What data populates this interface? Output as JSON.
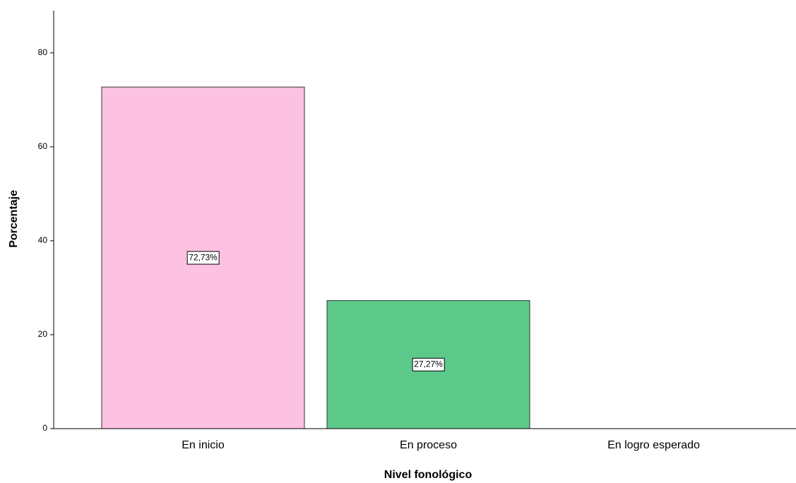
{
  "chart_data": {
    "type": "bar",
    "x_label": "Nivel fonológico",
    "y_label": "Porcentaje",
    "categories": [
      "En inicio",
      "En proceso",
      "En logro esperado"
    ],
    "values": [
      72.73,
      27.27,
      null
    ],
    "value_labels": [
      "72,73%",
      "27,27%",
      null
    ],
    "colors": [
      "#fdc1e1",
      "#5cc98a",
      null
    ],
    "ylim": [
      0,
      89
    ],
    "yticks": [
      0,
      20,
      40,
      60,
      80
    ],
    "grid": false
  }
}
